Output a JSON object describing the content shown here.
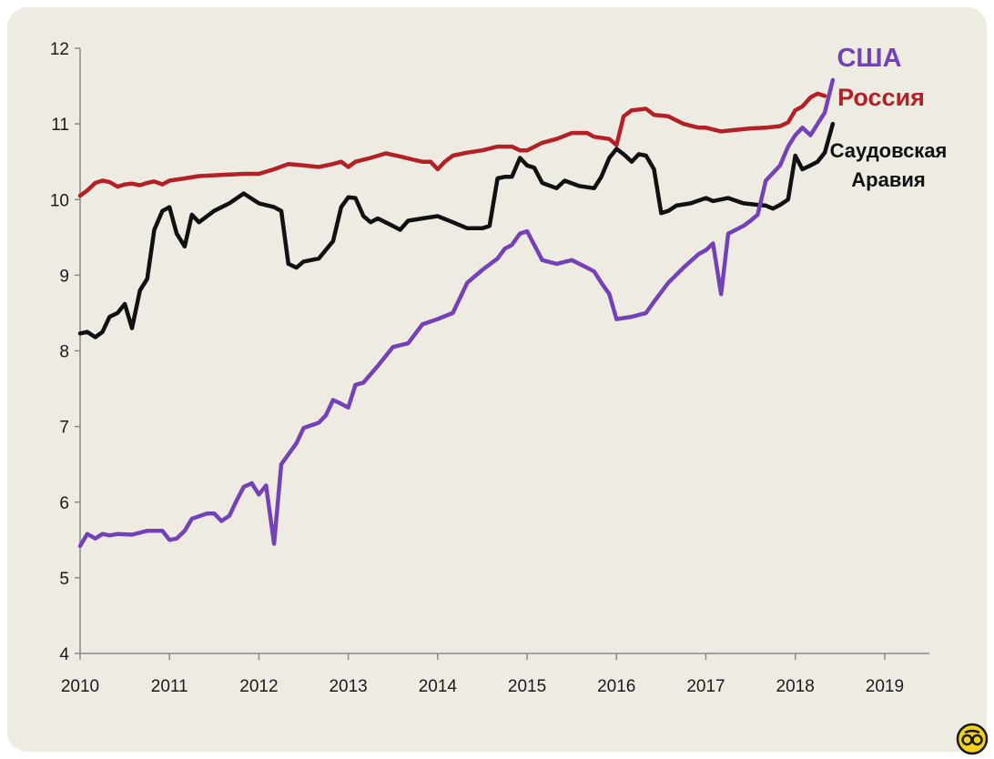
{
  "chart_data": {
    "type": "line",
    "xlim": [
      2010,
      2019.5
    ],
    "ylim": [
      4,
      12
    ],
    "x_ticks": [
      2010,
      2011,
      2012,
      2013,
      2014,
      2015,
      2016,
      2017,
      2018,
      2019
    ],
    "y_ticks": [
      4,
      5,
      6,
      7,
      8,
      9,
      10,
      11,
      12
    ],
    "grid": false,
    "series": [
      {
        "key": "russia",
        "labels": [
          "Россия"
        ],
        "color": "#b32025",
        "points": [
          [
            2010.0,
            10.05
          ],
          [
            2010.08,
            10.12
          ],
          [
            2010.17,
            10.22
          ],
          [
            2010.25,
            10.25
          ],
          [
            2010.33,
            10.23
          ],
          [
            2010.42,
            10.17
          ],
          [
            2010.5,
            10.2
          ],
          [
            2010.58,
            10.21
          ],
          [
            2010.67,
            10.19
          ],
          [
            2010.75,
            10.22
          ],
          [
            2010.83,
            10.24
          ],
          [
            2010.92,
            10.2
          ],
          [
            2011.0,
            10.25
          ],
          [
            2011.17,
            10.28
          ],
          [
            2011.33,
            10.31
          ],
          [
            2011.5,
            10.32
          ],
          [
            2011.67,
            10.33
          ],
          [
            2011.83,
            10.34
          ],
          [
            2012.0,
            10.34
          ],
          [
            2012.17,
            10.4
          ],
          [
            2012.33,
            10.47
          ],
          [
            2012.5,
            10.45
          ],
          [
            2012.67,
            10.43
          ],
          [
            2012.83,
            10.47
          ],
          [
            2012.92,
            10.5
          ],
          [
            2013.0,
            10.43
          ],
          [
            2013.08,
            10.5
          ],
          [
            2013.25,
            10.55
          ],
          [
            2013.42,
            10.61
          ],
          [
            2013.58,
            10.57
          ],
          [
            2013.75,
            10.52
          ],
          [
            2013.83,
            10.5
          ],
          [
            2013.92,
            10.5
          ],
          [
            2014.0,
            10.4
          ],
          [
            2014.08,
            10.5
          ],
          [
            2014.17,
            10.58
          ],
          [
            2014.33,
            10.62
          ],
          [
            2014.5,
            10.65
          ],
          [
            2014.67,
            10.7
          ],
          [
            2014.83,
            10.7
          ],
          [
            2014.92,
            10.65
          ],
          [
            2015.0,
            10.65
          ],
          [
            2015.17,
            10.75
          ],
          [
            2015.33,
            10.8
          ],
          [
            2015.5,
            10.88
          ],
          [
            2015.67,
            10.88
          ],
          [
            2015.75,
            10.83
          ],
          [
            2015.92,
            10.8
          ],
          [
            2016.0,
            10.72
          ],
          [
            2016.08,
            11.1
          ],
          [
            2016.17,
            11.18
          ],
          [
            2016.33,
            11.2
          ],
          [
            2016.42,
            11.12
          ],
          [
            2016.58,
            11.1
          ],
          [
            2016.75,
            11.0
          ],
          [
            2016.92,
            10.95
          ],
          [
            2017.0,
            10.95
          ],
          [
            2017.17,
            10.9
          ],
          [
            2017.33,
            10.92
          ],
          [
            2017.5,
            10.94
          ],
          [
            2017.67,
            10.95
          ],
          [
            2017.83,
            10.97
          ],
          [
            2017.92,
            11.02
          ],
          [
            2018.0,
            11.18
          ],
          [
            2018.08,
            11.23
          ],
          [
            2018.17,
            11.35
          ],
          [
            2018.25,
            11.4
          ],
          [
            2018.33,
            11.37
          ]
        ]
      },
      {
        "key": "saudi",
        "labels": [
          "Саудовская",
          "Аравия"
        ],
        "color": "#111111",
        "points": [
          [
            2010.0,
            8.23
          ],
          [
            2010.08,
            8.25
          ],
          [
            2010.17,
            8.18
          ],
          [
            2010.25,
            8.25
          ],
          [
            2010.33,
            8.45
          ],
          [
            2010.42,
            8.5
          ],
          [
            2010.5,
            8.62
          ],
          [
            2010.58,
            8.3
          ],
          [
            2010.67,
            8.8
          ],
          [
            2010.75,
            8.95
          ],
          [
            2010.83,
            9.6
          ],
          [
            2010.92,
            9.85
          ],
          [
            2011.0,
            9.9
          ],
          [
            2011.08,
            9.55
          ],
          [
            2011.17,
            9.38
          ],
          [
            2011.25,
            9.8
          ],
          [
            2011.33,
            9.7
          ],
          [
            2011.5,
            9.85
          ],
          [
            2011.67,
            9.95
          ],
          [
            2011.83,
            10.08
          ],
          [
            2012.0,
            9.95
          ],
          [
            2012.17,
            9.9
          ],
          [
            2012.25,
            9.85
          ],
          [
            2012.33,
            9.15
          ],
          [
            2012.42,
            9.1
          ],
          [
            2012.5,
            9.18
          ],
          [
            2012.67,
            9.22
          ],
          [
            2012.83,
            9.45
          ],
          [
            2012.92,
            9.9
          ],
          [
            2013.0,
            10.03
          ],
          [
            2013.08,
            10.02
          ],
          [
            2013.17,
            9.78
          ],
          [
            2013.25,
            9.7
          ],
          [
            2013.33,
            9.75
          ],
          [
            2013.5,
            9.65
          ],
          [
            2013.58,
            9.6
          ],
          [
            2013.67,
            9.72
          ],
          [
            2013.83,
            9.75
          ],
          [
            2014.0,
            9.78
          ],
          [
            2014.17,
            9.7
          ],
          [
            2014.33,
            9.62
          ],
          [
            2014.5,
            9.62
          ],
          [
            2014.58,
            9.65
          ],
          [
            2014.67,
            10.28
          ],
          [
            2014.75,
            10.3
          ],
          [
            2014.83,
            10.3
          ],
          [
            2014.92,
            10.55
          ],
          [
            2015.0,
            10.45
          ],
          [
            2015.08,
            10.42
          ],
          [
            2015.17,
            10.22
          ],
          [
            2015.33,
            10.15
          ],
          [
            2015.42,
            10.25
          ],
          [
            2015.58,
            10.18
          ],
          [
            2015.75,
            10.15
          ],
          [
            2015.83,
            10.3
          ],
          [
            2015.92,
            10.55
          ],
          [
            2016.0,
            10.67
          ],
          [
            2016.08,
            10.6
          ],
          [
            2016.17,
            10.5
          ],
          [
            2016.25,
            10.6
          ],
          [
            2016.33,
            10.58
          ],
          [
            2016.42,
            10.4
          ],
          [
            2016.5,
            9.82
          ],
          [
            2016.58,
            9.85
          ],
          [
            2016.67,
            9.92
          ],
          [
            2016.83,
            9.95
          ],
          [
            2017.0,
            10.02
          ],
          [
            2017.08,
            9.98
          ],
          [
            2017.25,
            10.02
          ],
          [
            2017.42,
            9.95
          ],
          [
            2017.58,
            9.93
          ],
          [
            2017.67,
            9.92
          ],
          [
            2017.75,
            9.88
          ],
          [
            2017.83,
            9.93
          ],
          [
            2017.92,
            10.0
          ],
          [
            2018.0,
            10.58
          ],
          [
            2018.08,
            10.4
          ],
          [
            2018.17,
            10.45
          ],
          [
            2018.25,
            10.5
          ],
          [
            2018.33,
            10.62
          ],
          [
            2018.42,
            11.0
          ]
        ]
      },
      {
        "key": "usa",
        "labels": [
          "США"
        ],
        "color": "#7442b8",
        "points": [
          [
            2010.0,
            5.42
          ],
          [
            2010.08,
            5.58
          ],
          [
            2010.17,
            5.52
          ],
          [
            2010.25,
            5.58
          ],
          [
            2010.33,
            5.56
          ],
          [
            2010.42,
            5.58
          ],
          [
            2010.58,
            5.57
          ],
          [
            2010.75,
            5.62
          ],
          [
            2010.92,
            5.62
          ],
          [
            2011.0,
            5.5
          ],
          [
            2011.08,
            5.52
          ],
          [
            2011.17,
            5.62
          ],
          [
            2011.25,
            5.78
          ],
          [
            2011.42,
            5.85
          ],
          [
            2011.5,
            5.85
          ],
          [
            2011.58,
            5.75
          ],
          [
            2011.67,
            5.82
          ],
          [
            2011.75,
            6.02
          ],
          [
            2011.83,
            6.2
          ],
          [
            2011.92,
            6.25
          ],
          [
            2012.0,
            6.1
          ],
          [
            2012.08,
            6.22
          ],
          [
            2012.17,
            5.45
          ],
          [
            2012.25,
            6.5
          ],
          [
            2012.42,
            6.78
          ],
          [
            2012.5,
            6.98
          ],
          [
            2012.67,
            7.05
          ],
          [
            2012.75,
            7.15
          ],
          [
            2012.83,
            7.35
          ],
          [
            2012.92,
            7.3
          ],
          [
            2013.0,
            7.25
          ],
          [
            2013.08,
            7.55
          ],
          [
            2013.17,
            7.58
          ],
          [
            2013.33,
            7.8
          ],
          [
            2013.5,
            8.05
          ],
          [
            2013.67,
            8.1
          ],
          [
            2013.83,
            8.35
          ],
          [
            2014.0,
            8.42
          ],
          [
            2014.17,
            8.5
          ],
          [
            2014.33,
            8.9
          ],
          [
            2014.5,
            9.07
          ],
          [
            2014.67,
            9.22
          ],
          [
            2014.75,
            9.35
          ],
          [
            2014.83,
            9.4
          ],
          [
            2014.92,
            9.55
          ],
          [
            2015.0,
            9.58
          ],
          [
            2015.08,
            9.4
          ],
          [
            2015.17,
            9.2
          ],
          [
            2015.33,
            9.15
          ],
          [
            2015.5,
            9.2
          ],
          [
            2015.67,
            9.1
          ],
          [
            2015.75,
            9.05
          ],
          [
            2015.83,
            8.9
          ],
          [
            2015.92,
            8.75
          ],
          [
            2016.0,
            8.42
          ],
          [
            2016.17,
            8.45
          ],
          [
            2016.33,
            8.5
          ],
          [
            2016.42,
            8.65
          ],
          [
            2016.58,
            8.9
          ],
          [
            2016.75,
            9.1
          ],
          [
            2016.92,
            9.28
          ],
          [
            2017.0,
            9.33
          ],
          [
            2017.08,
            9.42
          ],
          [
            2017.17,
            8.75
          ],
          [
            2017.25,
            9.55
          ],
          [
            2017.42,
            9.65
          ],
          [
            2017.5,
            9.72
          ],
          [
            2017.58,
            9.8
          ],
          [
            2017.67,
            10.25
          ],
          [
            2017.75,
            10.35
          ],
          [
            2017.83,
            10.45
          ],
          [
            2017.92,
            10.7
          ],
          [
            2018.0,
            10.85
          ],
          [
            2018.08,
            10.95
          ],
          [
            2018.17,
            10.85
          ],
          [
            2018.25,
            11.0
          ],
          [
            2018.33,
            11.15
          ],
          [
            2018.42,
            11.58
          ]
        ]
      }
    ]
  }
}
